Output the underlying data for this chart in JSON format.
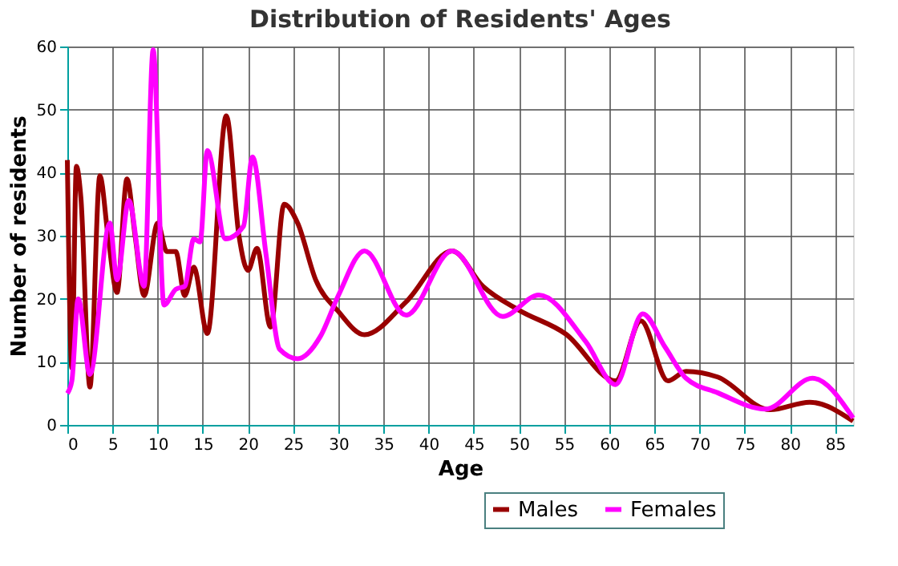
{
  "chart_data": {
    "type": "line",
    "title": "Distribution of Residents' Ages",
    "xlabel": "Age",
    "ylabel": "Number of residents",
    "xlim": [
      0,
      87
    ],
    "xticks": [
      0,
      5,
      10,
      15,
      20,
      25,
      30,
      35,
      40,
      45,
      50,
      55,
      60,
      65,
      70,
      75,
      80,
      85
    ],
    "ylim": [
      0,
      60
    ],
    "yticks": [
      0,
      10,
      20,
      30,
      40,
      50,
      60
    ],
    "grid": true,
    "legend": "bottom",
    "line_style": "solid",
    "marker": "none",
    "series": [
      {
        "name": "Males",
        "color": "#990000",
        "x": [
          0,
          0.5,
          1,
          1.5,
          2.5,
          3.6,
          4.5,
          5.5,
          6.6,
          7.5,
          8.5,
          10,
          11,
          12,
          13,
          14,
          15.5,
          17.6,
          19,
          20,
          21,
          22.5,
          24,
          25.5,
          27.5,
          30,
          32.9,
          37.5,
          42.6,
          46,
          50,
          55.2,
          60.7,
          63.5,
          66.5,
          68.5,
          72,
          77.8,
          82.2,
          87
        ],
        "values": [
          42,
          9,
          41,
          36,
          6,
          39.5,
          30,
          21,
          39,
          30,
          20.5,
          32,
          27.5,
          27.5,
          20.5,
          25,
          14.5,
          49,
          30,
          24.5,
          28,
          15.5,
          35,
          32,
          23,
          18,
          14.3,
          19.5,
          27.6,
          22,
          18.2,
          14.4,
          7,
          16.5,
          7,
          8.5,
          7.6,
          2.4,
          3.6,
          0.6
        ]
      },
      {
        "name": "Females",
        "color": "#ff00ff",
        "x": [
          0,
          0.5,
          1.2,
          2.5,
          4.7,
          5.5,
          6.8,
          8.5,
          9.5,
          10.7,
          12,
          13,
          14,
          14.7,
          15.5,
          17.5,
          19.5,
          20.5,
          22,
          23.5,
          25.5,
          28,
          30,
          32.9,
          37.5,
          42.6,
          48.2,
          52.2,
          57.4,
          60.7,
          63.7,
          66.2,
          68.5,
          72,
          77.3,
          82.5,
          87
        ],
        "values": [
          5,
          7,
          20,
          8,
          32,
          23,
          35.6,
          22,
          59.5,
          19,
          21.5,
          22,
          29.5,
          29,
          43.5,
          29.5,
          31.5,
          42.5,
          27,
          12,
          10.5,
          14,
          20.5,
          27.6,
          17.4,
          27.6,
          17.2,
          20.6,
          13.2,
          6.4,
          17.6,
          12.3,
          7.4,
          5.1,
          2.5,
          7.4,
          1.1
        ]
      }
    ]
  }
}
